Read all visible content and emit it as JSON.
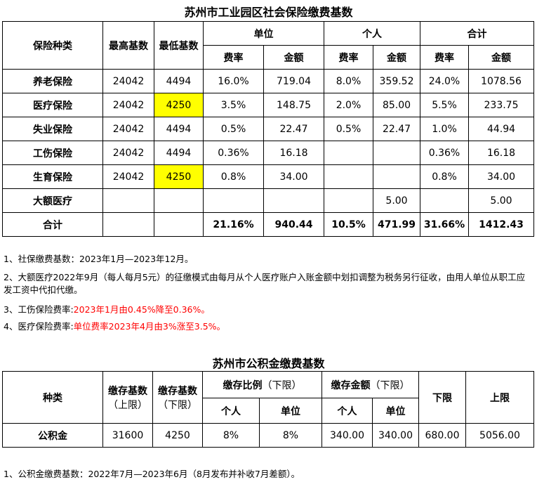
{
  "si": {
    "title": "苏州市工业园区社会保险缴费基数",
    "headers": {
      "type": "保险种类",
      "max_base": "最高基数",
      "min_base": "最低基数",
      "employer": "单位",
      "personal": "个人",
      "total": "合计",
      "rate": "费率",
      "amount": "金额"
    },
    "rows": [
      {
        "name": "养老保险",
        "max": "24042",
        "min": "4494",
        "er": "16.0%",
        "ea": "719.04",
        "pr": "8.0%",
        "pa": "359.52",
        "tr": "24.0%",
        "ta": "1078.56"
      },
      {
        "name": "医疗保险",
        "max": "24042",
        "min": "4250",
        "er": "3.5%",
        "ea": "148.75",
        "pr": "2.0%",
        "pa": "85.00",
        "tr": "5.5%",
        "ta": "233.75"
      },
      {
        "name": "失业保险",
        "max": "24042",
        "min": "4494",
        "er": "0.5%",
        "ea": "22.47",
        "pr": "0.5%",
        "pa": "22.47",
        "tr": "1.0%",
        "ta": "44.94"
      },
      {
        "name": "工伤保险",
        "max": "24042",
        "min": "4494",
        "er": "0.36%",
        "ea": "16.18",
        "pr": "",
        "pa": "",
        "tr": "0.36%",
        "ta": "16.18"
      },
      {
        "name": "生育保险",
        "max": "24042",
        "min": "4250",
        "er": "0.8%",
        "ea": "34.00",
        "pr": "",
        "pa": "",
        "tr": "0.8%",
        "ta": "34.00"
      },
      {
        "name": "大额医疗",
        "max": "",
        "min": "",
        "er": "",
        "ea": "",
        "pr": "",
        "pa": "5.00",
        "tr": "",
        "ta": "5.00"
      }
    ],
    "total_row": {
      "name": "合计",
      "er": "21.16%",
      "ea": "940.44",
      "pr": "10.5%",
      "pa": "471.99",
      "tr": "31.66%",
      "ta": "1412.43"
    },
    "highlight_color": "#ffff00"
  },
  "notes": {
    "n1": "1、社保缴费基数：2023年1月—2023年12月。",
    "n2": "2、大额医疗2022年9月（每人每月5元）的征缴模式由每月从个人医疗账户入账金额中划扣调整为税务另行征收，由用人单位从职工应发工资中代扣代缴。",
    "n3_prefix": "3、工伤保险费率:",
    "n3_red": "2023年1月由0.45%降至0.36%。",
    "n4_prefix": "4、医疗保险费率:",
    "n4_red": "单位费率2023年4月由3%涨至3.5%。",
    "red_color": "#ff0000"
  },
  "hf": {
    "title": "苏州市公积金缴费基数",
    "headers": {
      "type": "种类",
      "base_upper_1": "缴存基数",
      "base_upper_2": "（上限）",
      "base_lower_1": "缴存基数",
      "base_lower_2": "（下限）",
      "ratio_1": "缴存比例",
      "ratio_2": "（下限）",
      "amount_1": "缴存金额",
      "amount_2": "（下限）",
      "personal": "个人",
      "employer": "单位",
      "lower": "下限",
      "upper": "上限"
    },
    "row": {
      "name": "公积金",
      "base_upper": "31600",
      "base_lower": "4250",
      "rp": "8%",
      "re": "8%",
      "ap": "340.00",
      "ae": "340.00",
      "lower": "680.00",
      "upper": "5056.00"
    }
  },
  "notes2": {
    "n1": "1、公积金缴费基数：2022年7月—2023年6月（8月发布并补收7月差额）。"
  }
}
